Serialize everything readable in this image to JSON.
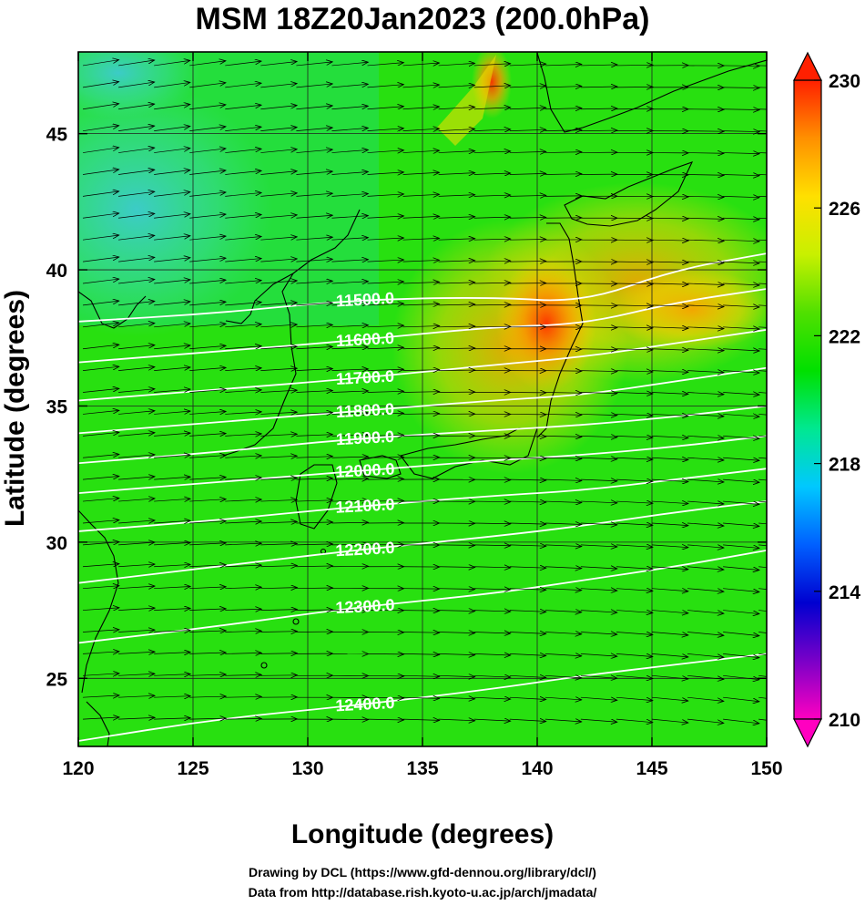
{
  "chart_data": {
    "type": "heatmap",
    "title": "MSM 18Z20Jan2023 (200.0hPa)",
    "xlabel": "Longitude (degrees)",
    "ylabel": "Latitude  (degrees)",
    "xlim": [
      120,
      150
    ],
    "ylim": [
      22.5,
      48
    ],
    "xticks": [
      120,
      125,
      130,
      135,
      140,
      145,
      150
    ],
    "yticks": [
      25,
      30,
      35,
      40,
      45
    ],
    "colorbar": {
      "range": [
        210,
        230
      ],
      "ticks": [
        210,
        214,
        218,
        222,
        226,
        230
      ],
      "extend": "both",
      "colors": [
        "#ff00c0",
        "#7a00c8",
        "#0000d0",
        "#0060ff",
        "#00c8ff",
        "#00e890",
        "#00e000",
        "#50e000",
        "#c8f000",
        "#ffe000",
        "#ff9000",
        "#ff2000"
      ]
    },
    "contours": [
      {
        "label": "11500.0",
        "points": [
          [
            120,
            38.1
          ],
          [
            126,
            38.4
          ],
          [
            132,
            38.9
          ],
          [
            138,
            39.0
          ],
          [
            142,
            38.8
          ],
          [
            146,
            40.0
          ],
          [
            150,
            40.6
          ]
        ]
      },
      {
        "label": "11600.0",
        "points": [
          [
            120,
            36.6
          ],
          [
            126,
            37.0
          ],
          [
            132,
            37.4
          ],
          [
            138,
            37.9
          ],
          [
            142,
            38.0
          ],
          [
            146,
            38.8
          ],
          [
            150,
            39.3
          ]
        ]
      },
      {
        "label": "11700.0",
        "points": [
          [
            120,
            35.2
          ],
          [
            126,
            35.6
          ],
          [
            132,
            36.0
          ],
          [
            138,
            36.5
          ],
          [
            142,
            36.8
          ],
          [
            146,
            37.3
          ],
          [
            150,
            37.8
          ]
        ]
      },
      {
        "label": "11800.0",
        "points": [
          [
            120,
            34.0
          ],
          [
            126,
            34.4
          ],
          [
            132,
            34.8
          ],
          [
            138,
            35.2
          ],
          [
            142,
            35.4
          ],
          [
            146,
            35.9
          ],
          [
            150,
            36.4
          ]
        ]
      },
      {
        "label": "11900.0",
        "points": [
          [
            120,
            32.9
          ],
          [
            126,
            33.3
          ],
          [
            132,
            33.8
          ],
          [
            138,
            34.1
          ],
          [
            142,
            34.3
          ],
          [
            146,
            34.6
          ],
          [
            150,
            35.0
          ]
        ]
      },
      {
        "label": "12000.0",
        "points": [
          [
            120,
            31.8
          ],
          [
            126,
            32.2
          ],
          [
            132,
            32.6
          ],
          [
            138,
            33.0
          ],
          [
            142,
            33.2
          ],
          [
            146,
            33.5
          ],
          [
            150,
            33.9
          ]
        ]
      },
      {
        "label": "12100.0",
        "points": [
          [
            120,
            30.4
          ],
          [
            126,
            30.8
          ],
          [
            132,
            31.3
          ],
          [
            138,
            31.7
          ],
          [
            142,
            31.9
          ],
          [
            146,
            32.3
          ],
          [
            150,
            32.7
          ]
        ]
      },
      {
        "label": "12200.0",
        "points": [
          [
            120,
            28.5
          ],
          [
            126,
            29.1
          ],
          [
            132,
            29.7
          ],
          [
            138,
            30.2
          ],
          [
            142,
            30.6
          ],
          [
            146,
            31.1
          ],
          [
            150,
            31.5
          ]
        ]
      },
      {
        "label": "12300.0",
        "points": [
          [
            120,
            26.3
          ],
          [
            126,
            26.9
          ],
          [
            132,
            27.6
          ],
          [
            138,
            28.1
          ],
          [
            142,
            28.6
          ],
          [
            146,
            29.1
          ],
          [
            150,
            29.7
          ]
        ]
      },
      {
        "label": "12400.0",
        "points": [
          [
            120,
            22.7
          ],
          [
            126,
            23.5
          ],
          [
            132,
            24.0
          ],
          [
            138,
            24.6
          ],
          [
            142,
            25.1
          ],
          [
            146,
            25.5
          ],
          [
            150,
            25.9
          ]
        ]
      }
    ],
    "colorbar_tick_labels": [
      "230",
      "226",
      "222",
      "218",
      "214",
      "210"
    ]
  },
  "credits": {
    "line1": "Drawing by DCL (https://www.gfd-dennou.org/library/dcl/)",
    "line2": "Data from http://database.rish.kyoto-u.ac.jp/arch/jmadata/"
  }
}
